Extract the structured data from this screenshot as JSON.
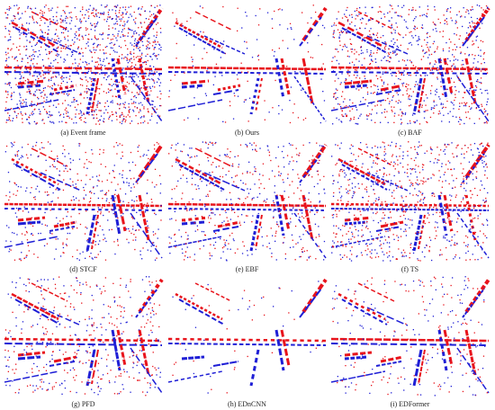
{
  "panels": [
    {
      "caption": "(a) Event frame"
    },
    {
      "caption": "(b) Ours"
    },
    {
      "caption": "(c) BAF"
    },
    {
      "caption": "(d) STCF"
    },
    {
      "caption": "(e) EBF"
    },
    {
      "caption": "(f) TS"
    },
    {
      "caption": "(g) PFD"
    },
    {
      "caption": "(h) EDnCNN"
    },
    {
      "caption": "(i) EDFormer"
    }
  ]
}
